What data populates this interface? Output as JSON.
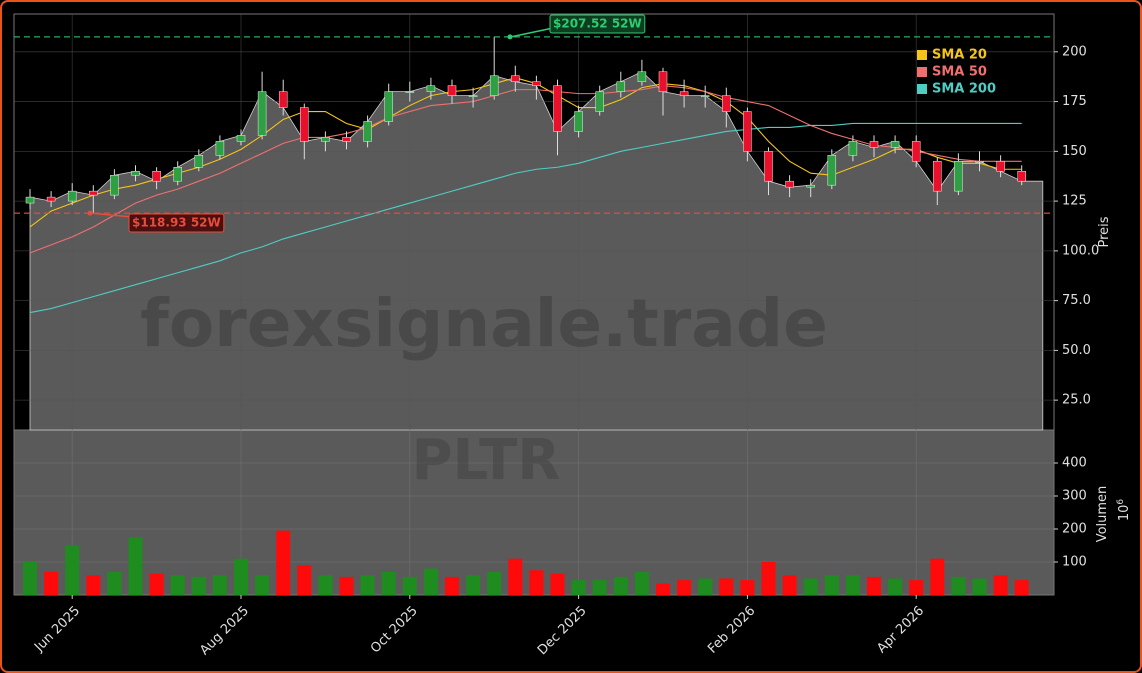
{
  "chart_data": {
    "type": "candlestick",
    "categories": [
      null,
      null,
      "Jun 2025",
      null,
      null,
      null,
      null,
      null,
      null,
      null,
      "Aug 2025",
      null,
      null,
      null,
      null,
      null,
      null,
      null,
      "Oct 2025",
      null,
      null,
      null,
      null,
      null,
      null,
      null,
      "Dec 2025",
      null,
      null,
      null,
      null,
      null,
      null,
      null,
      "Feb 2026",
      null,
      null,
      null,
      null,
      null,
      null,
      null,
      "Apr 2026",
      null,
      null,
      null,
      null,
      null
    ],
    "open": [
      124,
      127,
      125,
      130,
      128,
      138,
      140,
      135,
      142,
      148,
      155,
      158,
      180,
      172,
      155,
      157,
      155,
      165,
      180,
      180,
      183,
      178,
      178,
      188,
      185,
      183,
      160,
      170,
      180,
      185,
      190,
      180,
      178,
      178,
      170,
      150,
      135,
      132,
      133,
      148,
      155,
      152,
      155,
      145,
      130,
      145,
      145,
      140
    ],
    "high": [
      131,
      130,
      134,
      133,
      141,
      143,
      142,
      145,
      151,
      158,
      161,
      190,
      186,
      174,
      160,
      160,
      168,
      184,
      185,
      187,
      186,
      182,
      207.52,
      193,
      188,
      186,
      173,
      183,
      190,
      196,
      192,
      186,
      183,
      182,
      172,
      152,
      138,
      136,
      151,
      158,
      158,
      158,
      158,
      147,
      149,
      150,
      148,
      143
    ],
    "low": [
      121,
      122,
      123,
      118.93,
      126,
      135,
      131,
      133,
      140,
      146,
      153,
      156,
      168,
      146,
      150,
      151,
      152,
      163,
      175,
      176,
      174,
      172,
      176,
      180,
      176,
      148,
      157,
      168,
      177,
      183,
      168,
      172,
      172,
      162,
      145,
      128,
      127,
      127,
      131,
      145,
      147,
      149,
      142,
      123,
      128,
      140,
      137,
      133
    ],
    "close": [
      127,
      125,
      130,
      128,
      138,
      140,
      135,
      142,
      148,
      155,
      158,
      180,
      172,
      155,
      157,
      155,
      165,
      180,
      180,
      183,
      178,
      178,
      188,
      185,
      183,
      160,
      170,
      180,
      185,
      190,
      180,
      178,
      178,
      170,
      150,
      135,
      132,
      133,
      148,
      155,
      152,
      155,
      145,
      130,
      145,
      145,
      140,
      135
    ],
    "up_color": "#2ea043",
    "down_color": "#e8102a",
    "area_color": "#5a5a5a",
    "series": [
      {
        "name": "SMA 20",
        "color": "#f5c518",
        "values": [
          112,
          120,
          124,
          128,
          131,
          133,
          136,
          139,
          142,
          146,
          151,
          158,
          166,
          170,
          170,
          164,
          161,
          167,
          173,
          178,
          180,
          181,
          184,
          187,
          184,
          178,
          172,
          172,
          176,
          182,
          184,
          183,
          180,
          175,
          167,
          155,
          145,
          139,
          138,
          142,
          146,
          151,
          151,
          147,
          144,
          144,
          141,
          141
        ]
      },
      {
        "name": "SMA 50",
        "color": "#f07070",
        "values": [
          99,
          103,
          107,
          112,
          118,
          124,
          128,
          131,
          135,
          139,
          144,
          149,
          154,
          157,
          157,
          159,
          162,
          167,
          170,
          173,
          174,
          175,
          178,
          181,
          181,
          180,
          179,
          179,
          180,
          181,
          183,
          182,
          180,
          177,
          175,
          173,
          168,
          163,
          159,
          156,
          153,
          152,
          150,
          148,
          146,
          145,
          145,
          145
        ]
      },
      {
        "name": "SMA 200",
        "color": "#4ecdc4",
        "values": [
          69,
          71,
          74,
          77,
          80,
          83,
          86,
          89,
          92,
          95,
          99,
          102,
          106,
          109,
          112,
          115,
          118,
          121,
          124,
          127,
          130,
          133,
          136,
          139,
          141,
          142,
          144,
          147,
          150,
          152,
          154,
          156,
          158,
          160,
          161,
          162,
          162,
          163,
          163,
          164,
          164,
          164,
          164,
          164,
          164,
          164,
          164,
          164
        ]
      }
    ],
    "legend": "upper right",
    "ylabel": "Preis",
    "ylim": [
      10,
      219
    ],
    "yticks": [
      {
        "value": 25,
        "label": "25.0"
      },
      {
        "value": 50,
        "label": "50.0"
      },
      {
        "value": 75,
        "label": "75.0"
      },
      {
        "value": 100,
        "label": "100.0"
      },
      125,
      150,
      175,
      200
    ],
    "grid": true,
    "annotations": [
      {
        "value": 207.52,
        "label": "$207.52 52W",
        "color": "#2ecc71"
      },
      {
        "value": 118.93,
        "label": "$118.93 52W",
        "color": "#e74c3c"
      }
    ],
    "watermark": "forexsignale.trade",
    "ticker": "PLTR",
    "volume": {
      "label": "Volumen",
      "scale_base": "10",
      "scale_exponent": "6",
      "values": [
        100,
        70,
        150,
        60,
        70,
        175,
        65,
        60,
        55,
        60,
        110,
        60,
        195,
        90,
        60,
        55,
        60,
        70,
        55,
        80,
        55,
        60,
        70,
        110,
        75,
        65,
        45,
        45,
        55,
        70,
        35,
        45,
        50,
        50,
        45,
        100,
        60,
        50,
        60,
        60,
        55,
        50,
        45,
        110,
        55,
        50,
        60,
        45
      ],
      "ylim": [
        0,
        500
      ],
      "yticks": [
        100,
        200,
        300,
        400
      ]
    }
  }
}
